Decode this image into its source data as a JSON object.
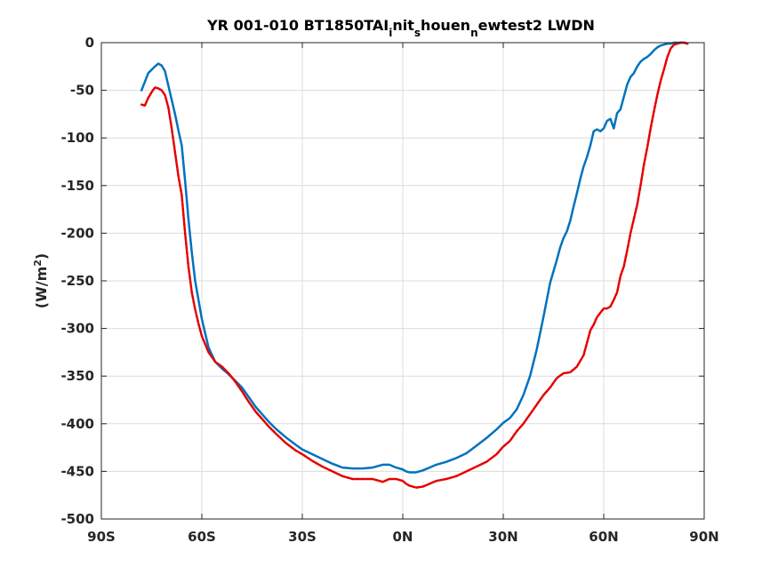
{
  "chart_data": {
    "type": "line",
    "title": "YR 001-010 BT1850TAI_init_shouen_newtest2 LWDN",
    "title_parts": [
      {
        "text": "YR 001-010 BT1850TAI",
        "sub": false
      },
      {
        "text": "i",
        "sub": true
      },
      {
        "text": "nit",
        "sub": false
      },
      {
        "text": "s",
        "sub": true
      },
      {
        "text": "houen",
        "sub": false
      },
      {
        "text": "n",
        "sub": true
      },
      {
        "text": "ewtest2 LWDN",
        "sub": false
      }
    ],
    "xlabel": "",
    "ylabel": "(W/m²)",
    "ylabel_parts": {
      "base": "(W/m",
      "sup": "2",
      "end": ")"
    },
    "xlim": [
      -90,
      90
    ],
    "ylim": [
      -500,
      0
    ],
    "xticks": [
      -90,
      -60,
      -30,
      0,
      30,
      60,
      90
    ],
    "xtick_labels": [
      "90S",
      "60S",
      "30S",
      "0N",
      "30N",
      "60N",
      "90N"
    ],
    "yticks": [
      0,
      -50,
      -100,
      -150,
      -200,
      -250,
      -300,
      -350,
      -400,
      -450,
      -500
    ],
    "ytick_labels": [
      "0",
      "-50",
      "-100",
      "-150",
      "-200",
      "-250",
      "-300",
      "-350",
      "-400",
      "-450",
      "-500"
    ],
    "grid": true,
    "series": [
      {
        "color": "#0072bd",
        "dash": "solid",
        "x": [
          -78,
          -76,
          -74,
          -73,
          -72,
          -71,
          -70,
          -69,
          -68,
          -67,
          -66,
          -65,
          -64,
          -63,
          -62,
          -61,
          -60,
          -58,
          -56,
          -54,
          -52,
          -50,
          -48,
          -46,
          -44,
          -42,
          -40,
          -38,
          -35,
          -32,
          -30,
          -27,
          -24,
          -21,
          -18,
          -15,
          -12,
          -9,
          -6,
          -4,
          -2,
          0,
          1,
          2,
          4,
          6,
          8,
          10,
          13,
          16,
          19,
          22,
          25,
          28,
          30,
          32,
          34,
          36,
          38,
          40,
          42,
          43,
          44,
          45,
          46,
          47,
          48,
          49,
          50,
          51,
          52,
          53,
          54,
          55,
          56,
          57,
          58,
          59,
          60,
          61,
          62,
          62.5,
          63,
          64,
          65,
          66,
          67,
          68,
          69,
          70,
          71,
          72,
          73,
          74,
          75,
          76,
          77,
          78,
          79,
          80,
          81,
          82,
          83,
          84,
          85
        ],
        "y": [
          -50,
          -32,
          -25,
          -22,
          -24,
          -30,
          -45,
          -60,
          -75,
          -92,
          -108,
          -145,
          -185,
          -220,
          -250,
          -270,
          -290,
          -320,
          -335,
          -342,
          -348,
          -355,
          -362,
          -372,
          -382,
          -390,
          -398,
          -405,
          -414,
          -422,
          -427,
          -432,
          -437,
          -442,
          -446,
          -447,
          -447,
          -446,
          -443,
          -443,
          -446,
          -448,
          -450,
          -451,
          -451,
          -449,
          -446,
          -443,
          -440,
          -436,
          -431,
          -423,
          -415,
          -406,
          -399,
          -394,
          -385,
          -370,
          -350,
          -322,
          -288,
          -270,
          -252,
          -240,
          -228,
          -215,
          -205,
          -198,
          -187,
          -172,
          -158,
          -143,
          -130,
          -120,
          -108,
          -93,
          -91,
          -93,
          -90,
          -82,
          -80,
          -85,
          -90,
          -74,
          -70,
          -57,
          -44,
          -36,
          -32,
          -25,
          -20,
          -17,
          -15,
          -12,
          -8,
          -5,
          -3,
          -2,
          -1,
          -1,
          0,
          0,
          0,
          0,
          -1
        ]
      },
      {
        "color": "#e60000",
        "dash": "dashed",
        "x": [
          -78,
          -77,
          -76,
          -75,
          -74,
          -73,
          -72,
          -71,
          -70,
          -69,
          -68,
          -67,
          -66,
          -65,
          -64,
          -63,
          -62,
          -61,
          -60,
          -58,
          -56,
          -54,
          -52,
          -50,
          -48,
          -46,
          -44,
          -42,
          -40,
          -38,
          -35,
          -32,
          -30,
          -27,
          -24,
          -21,
          -18,
          -15,
          -12,
          -9,
          -6,
          -4,
          -2,
          0,
          1,
          2,
          4,
          6,
          8,
          10,
          13,
          16,
          19,
          22,
          25,
          28,
          30,
          32,
          34,
          36,
          38,
          40,
          42,
          44,
          46,
          48,
          50,
          52,
          54,
          55,
          56,
          57,
          58,
          60,
          61,
          62,
          63,
          64,
          65,
          66,
          67,
          68,
          69,
          70,
          71,
          72,
          73,
          74,
          75,
          76,
          77,
          78,
          79,
          80,
          81,
          82,
          83,
          84,
          85
        ],
        "y": [
          -65,
          -66,
          -58,
          -52,
          -47,
          -48,
          -50,
          -55,
          -68,
          -90,
          -115,
          -140,
          -160,
          -200,
          -235,
          -262,
          -280,
          -295,
          -308,
          -325,
          -335,
          -340,
          -347,
          -356,
          -366,
          -377,
          -387,
          -395,
          -403,
          -410,
          -420,
          -428,
          -432,
          -439,
          -445,
          -450,
          -455,
          -458,
          -458,
          -458,
          -461,
          -458,
          -458,
          -460,
          -463,
          -465,
          -467,
          -466,
          -463,
          -460,
          -458,
          -455,
          -450,
          -445,
          -440,
          -432,
          -424,
          -418,
          -408,
          -400,
          -390,
          -380,
          -370,
          -362,
          -352,
          -347,
          -346,
          -340,
          -328,
          -315,
          -302,
          -296,
          -288,
          -279,
          -279,
          -277,
          -270,
          -262,
          -245,
          -235,
          -218,
          -200,
          -185,
          -170,
          -150,
          -128,
          -110,
          -90,
          -72,
          -55,
          -40,
          -28,
          -15,
          -6,
          -2,
          -1,
          0,
          0,
          -1
        ]
      }
    ]
  }
}
